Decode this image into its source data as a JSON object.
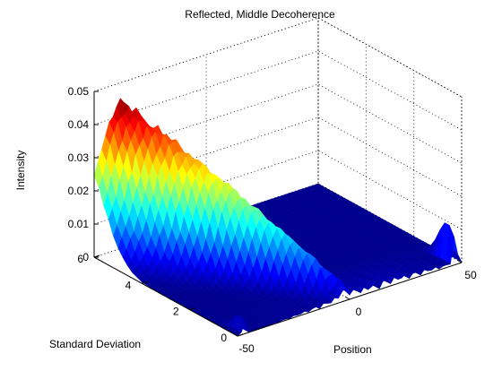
{
  "chart_data": {
    "type": "surface",
    "title": "Reflected, Middle Decoherence",
    "xlabel": "Position",
    "ylabel": "Standard Deviation",
    "zlabel": "Intensity",
    "xlim": [
      -50,
      50
    ],
    "ylim": [
      0,
      6
    ],
    "zlim": [
      0,
      0.05
    ],
    "xticks": [
      "-50",
      "0",
      "50"
    ],
    "yticks": [
      "0",
      "2",
      "4",
      "6"
    ],
    "zticks": [
      "0",
      "0.01",
      "0.02",
      "0.03",
      "0.04",
      "0.05"
    ],
    "grid": true,
    "colormap": "jet",
    "colormap_colors": [
      "#00008f",
      "#0000ff",
      "#0080ff",
      "#00ffff",
      "#80ff80",
      "#ffff00",
      "#ff8000",
      "#ff0000",
      "#800000"
    ],
    "surface_profile": {
      "x_start_peak": -2,
      "x_end_peak": -38,
      "peak_at_std0": 0.002,
      "peak_at_std6": 0.044,
      "ripple_amplitude": 0.003,
      "edge_spike_x": 47,
      "edge_spike_height": 0.012
    }
  }
}
